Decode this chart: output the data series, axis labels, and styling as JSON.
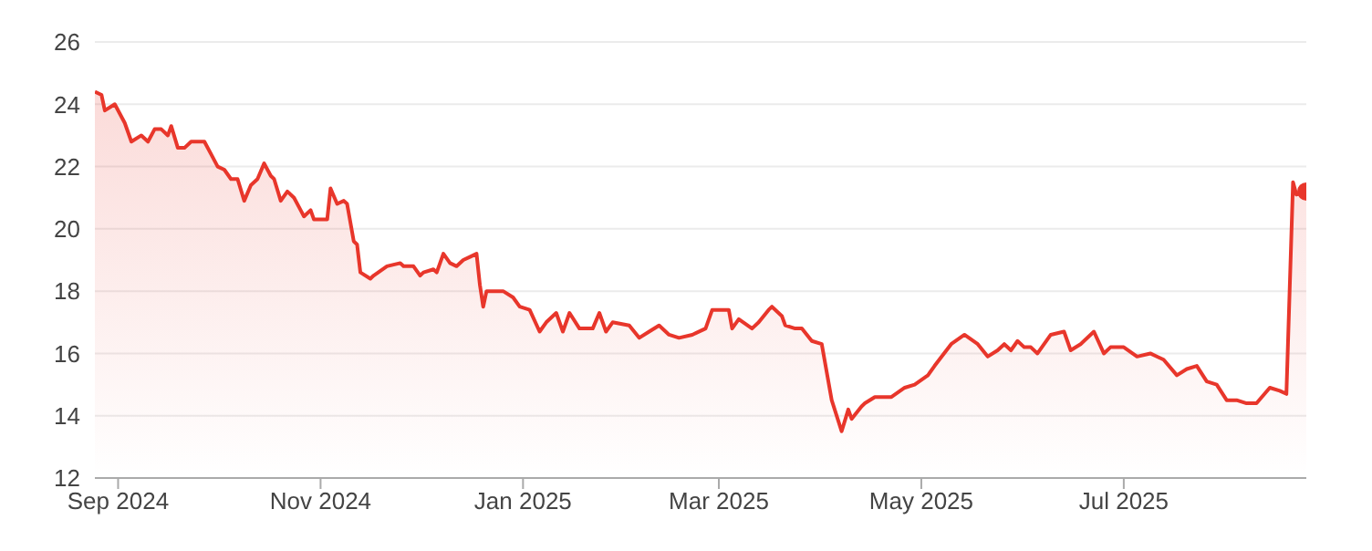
{
  "chart_data": {
    "type": "area",
    "color": "#e8362b",
    "x": [
      "2024-08-25",
      "2024-08-27",
      "2024-08-28",
      "2024-08-31",
      "2024-09-03",
      "2024-09-05",
      "2024-09-08",
      "2024-09-10",
      "2024-09-12",
      "2024-09-14",
      "2024-09-16",
      "2024-09-17",
      "2024-09-19",
      "2024-09-21",
      "2024-09-23",
      "2024-09-27",
      "2024-09-29",
      "2024-10-01",
      "2024-10-03",
      "2024-10-05",
      "2024-10-07",
      "2024-10-09",
      "2024-10-11",
      "2024-10-13",
      "2024-10-15",
      "2024-10-17",
      "2024-10-18",
      "2024-10-20",
      "2024-10-22",
      "2024-10-24",
      "2024-10-26",
      "2024-10-27",
      "2024-10-29",
      "2024-10-30",
      "2024-11-03",
      "2024-11-04",
      "2024-11-06",
      "2024-11-08",
      "2024-11-09",
      "2024-11-11",
      "2024-11-12",
      "2024-11-13",
      "2024-11-16",
      "2024-11-17",
      "2024-11-21",
      "2024-11-25",
      "2024-11-26",
      "2024-11-29",
      "2024-12-01",
      "2024-12-02",
      "2024-12-05",
      "2024-12-06",
      "2024-12-08",
      "2024-12-10",
      "2024-12-12",
      "2024-12-14",
      "2024-12-16",
      "2024-12-18",
      "2024-12-19",
      "2024-12-20",
      "2024-12-21",
      "2024-12-26",
      "2024-12-29",
      "2024-12-31",
      "2025-01-03",
      "2025-01-06",
      "2025-01-08",
      "2025-01-11",
      "2025-01-13",
      "2025-01-15",
      "2025-01-18",
      "2025-01-22",
      "2025-01-24",
      "2025-01-26",
      "2025-01-28",
      "2025-02-02",
      "2025-02-05",
      "2025-02-08",
      "2025-02-11",
      "2025-02-14",
      "2025-02-17",
      "2025-02-21",
      "2025-02-25",
      "2025-02-27",
      "2025-03-04",
      "2025-03-05",
      "2025-03-07",
      "2025-03-11",
      "2025-03-13",
      "2025-03-16",
      "2025-03-17",
      "2025-03-20",
      "2025-03-21",
      "2025-03-24",
      "2025-03-26",
      "2025-03-29",
      "2025-04-01",
      "2025-04-04",
      "2025-04-07",
      "2025-04-09",
      "2025-04-10",
      "2025-04-13",
      "2025-04-14",
      "2025-04-17",
      "2025-04-19",
      "2025-04-22",
      "2025-04-26",
      "2025-04-29",
      "2025-05-03",
      "2025-05-05",
      "2025-05-10",
      "2025-05-14",
      "2025-05-18",
      "2025-05-21",
      "2025-05-24",
      "2025-05-26",
      "2025-05-28",
      "2025-05-30",
      "2025-06-01",
      "2025-06-03",
      "2025-06-05",
      "2025-06-09",
      "2025-06-13",
      "2025-06-15",
      "2025-06-18",
      "2025-06-22",
      "2025-06-25",
      "2025-06-27",
      "2025-07-01",
      "2025-07-05",
      "2025-07-09",
      "2025-07-13",
      "2025-07-17",
      "2025-07-20",
      "2025-07-23",
      "2025-07-26",
      "2025-07-29",
      "2025-08-01",
      "2025-08-04",
      "2025-08-07",
      "2025-08-10",
      "2025-08-14",
      "2025-08-17",
      "2025-08-19",
      "2025-08-21",
      "2025-08-22",
      "2025-08-25"
    ],
    "values": [
      24.4,
      24.3,
      23.8,
      24.0,
      23.4,
      22.8,
      23.0,
      22.8,
      23.2,
      23.2,
      23.0,
      23.3,
      22.6,
      22.6,
      22.8,
      22.8,
      22.4,
      22.0,
      21.9,
      21.6,
      21.6,
      20.9,
      21.4,
      21.6,
      22.1,
      21.7,
      21.6,
      20.9,
      21.2,
      21.0,
      20.6,
      20.4,
      20.6,
      20.3,
      20.3,
      21.3,
      20.8,
      20.9,
      20.8,
      19.6,
      19.5,
      18.6,
      18.4,
      18.5,
      18.8,
      18.9,
      18.8,
      18.8,
      18.5,
      18.6,
      18.7,
      18.6,
      19.2,
      18.9,
      18.8,
      19.0,
      19.1,
      19.2,
      18.2,
      17.5,
      18.0,
      18.0,
      17.8,
      17.5,
      17.4,
      16.7,
      17.0,
      17.3,
      16.7,
      17.3,
      16.8,
      16.8,
      17.3,
      16.7,
      17.0,
      16.9,
      16.5,
      16.7,
      16.9,
      16.6,
      16.5,
      16.6,
      16.8,
      17.4,
      17.4,
      16.8,
      17.1,
      16.8,
      17.0,
      17.4,
      17.5,
      17.2,
      16.9,
      16.8,
      16.8,
      16.4,
      16.3,
      14.5,
      13.5,
      14.2,
      13.9,
      14.3,
      14.4,
      14.6,
      14.6,
      14.6,
      14.9,
      15.0,
      15.3,
      15.6,
      16.3,
      16.6,
      16.3,
      15.9,
      16.1,
      16.3,
      16.1,
      16.4,
      16.2,
      16.2,
      16.0,
      16.6,
      16.7,
      16.1,
      16.3,
      16.7,
      16.0,
      16.2,
      16.2,
      15.9,
      16.0,
      15.8,
      15.3,
      15.5,
      15.6,
      15.1,
      15.0,
      14.5,
      14.5,
      14.4,
      14.4,
      14.9,
      14.8,
      14.7,
      21.5,
      21.1,
      21.2
    ],
    "xlim": [
      "2024-08-25",
      "2025-08-25"
    ],
    "xticks": [
      {
        "value": "2024-09-01",
        "label": "Sep 2024"
      },
      {
        "value": "2024-11-01",
        "label": "Nov 2024"
      },
      {
        "value": "2025-01-01",
        "label": "Jan 2025"
      },
      {
        "value": "2025-03-01",
        "label": "Mar 2025"
      },
      {
        "value": "2025-05-01",
        "label": "May 2025"
      },
      {
        "value": "2025-07-01",
        "label": "Jul 2025"
      }
    ],
    "ylim": [
      12,
      26
    ],
    "yticks": [
      12,
      14,
      16,
      18,
      20,
      22,
      24,
      26
    ],
    "grid": "y",
    "legend": false
  }
}
